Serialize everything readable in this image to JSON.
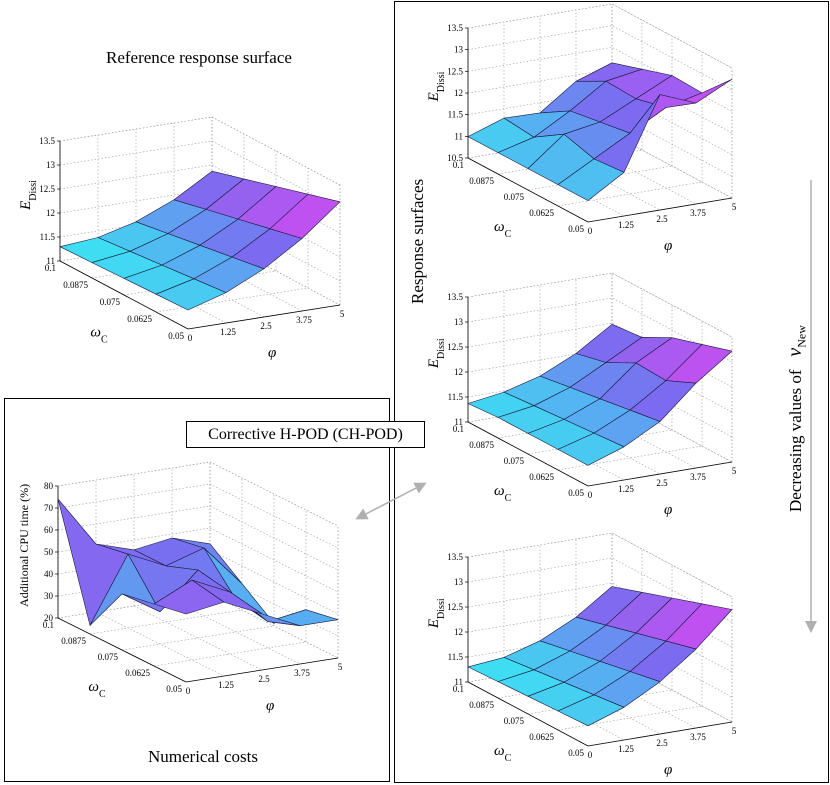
{
  "reference": {
    "title": "Reference response surface",
    "zlabel": "E",
    "zlabel_sub": "Dissi",
    "zticks": [
      "13.5",
      "13",
      "12.5",
      "12",
      "11.5",
      "11"
    ],
    "xlabel": "ω",
    "xlabel_sub": "C",
    "xticks": [
      "0.1",
      "0.0875",
      "0.075",
      "0.0625",
      "0.05"
    ],
    "ylabel": "φ",
    "yticks": [
      "0",
      "1.25",
      "2.5",
      "3.75",
      "5"
    ]
  },
  "response_surfaces": {
    "label": "Response surfaces",
    "arrow_label": "Decreasing values of",
    "arrow_symbol": "ν",
    "arrow_symbol_sub": "New",
    "plots": [
      {
        "zlabel": "E",
        "zlabel_sub": "Dissi",
        "zticks": [
          "13.5",
          "13",
          "12.5",
          "12",
          "11.5",
          "11",
          "10.5"
        ],
        "xlabel": "ω",
        "xlabel_sub": "C",
        "xticks": [
          "0.1",
          "0.0875",
          "0.075",
          "0.0625",
          "0.05"
        ],
        "ylabel": "φ",
        "yticks": [
          "0",
          "1.25",
          "2.5",
          "3.75",
          "5"
        ]
      },
      {
        "zlabel": "E",
        "zlabel_sub": "Dissi",
        "zticks": [
          "13.5",
          "13",
          "12.5",
          "12",
          "11.5",
          "11"
        ],
        "xlabel": "ω",
        "xlabel_sub": "C",
        "xticks": [
          "0.1",
          "0.0875",
          "0.075",
          "0.0625",
          "0.05"
        ],
        "ylabel": "φ",
        "yticks": [
          "0",
          "1.25",
          "2.5",
          "3.75",
          "5"
        ]
      },
      {
        "zlabel": "E",
        "zlabel_sub": "Dissi",
        "zticks": [
          "13.5",
          "13",
          "12.5",
          "12",
          "11.5",
          "11"
        ],
        "xlabel": "ω",
        "xlabel_sub": "C",
        "xticks": [
          "0.1",
          "0.0875",
          "0.075",
          "0.0625",
          "0.05"
        ],
        "ylabel": "φ",
        "yticks": [
          "0",
          "1.25",
          "2.5",
          "3.75",
          "5"
        ]
      }
    ]
  },
  "costs": {
    "caption": "Numerical costs",
    "zlabel": "Additional CPU time (%)",
    "zticks": [
      "80",
      "70",
      "60",
      "50",
      "40",
      "30",
      "20"
    ],
    "xlabel": "ω",
    "xlabel_sub": "C",
    "xticks": [
      "0.1",
      "0.0875",
      "0.075",
      "0.0625",
      "0.05"
    ],
    "ylabel": "φ",
    "yticks": [
      "0",
      "1.25",
      "2.5",
      "3.75",
      "5"
    ]
  },
  "method_label": "Corrective H-POD (CH-POD)",
  "colors": {
    "surface_low": "#33f2f2",
    "surface_mid": "#7a6cf0",
    "surface_high": "#f23ef2",
    "arrow": "#b0b0b0",
    "grid": "#9a9a9a"
  }
}
